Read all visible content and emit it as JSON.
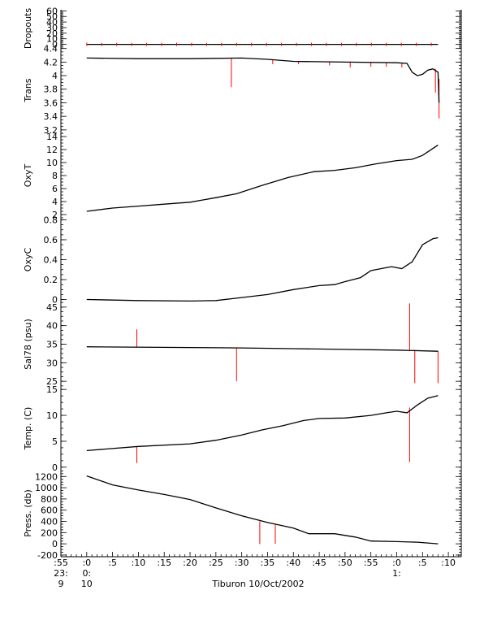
{
  "chart_data": {
    "type": "line",
    "xlabel": "Tiburon 10/Oct/2002",
    "x_ticks": [
      {
        "minute": -5,
        "l1": ":55",
        "l2": "23:",
        "l3": "9"
      },
      {
        "minute": 0,
        "l1": ":0",
        "l2": "0:",
        "l3": "10"
      },
      {
        "minute": 5,
        "l1": ":5",
        "l2": "",
        "l3": ""
      },
      {
        "minute": 10,
        "l1": ":10",
        "l2": "",
        "l3": ""
      },
      {
        "minute": 15,
        "l1": ":15",
        "l2": "",
        "l3": ""
      },
      {
        "minute": 20,
        "l1": ":20",
        "l2": "",
        "l3": ""
      },
      {
        "minute": 25,
        "l1": ":25",
        "l2": "",
        "l3": ""
      },
      {
        "minute": 30,
        "l1": ":30",
        "l2": "",
        "l3": ""
      },
      {
        "minute": 35,
        "l1": ":35",
        "l2": "",
        "l3": ""
      },
      {
        "minute": 40,
        "l1": ":40",
        "l2": "",
        "l3": ""
      },
      {
        "minute": 45,
        "l1": ":45",
        "l2": "",
        "l3": ""
      },
      {
        "minute": 50,
        "l1": ":50",
        "l2": "",
        "l3": ""
      },
      {
        "minute": 55,
        "l1": ":55",
        "l2": "",
        "l3": ""
      },
      {
        "minute": 60,
        "l1": ":0",
        "l2": "1:",
        "l3": ""
      },
      {
        "minute": 65,
        "l1": ":5",
        "l2": "",
        "l3": ""
      },
      {
        "minute": 70,
        "l1": ":10",
        "l2": "",
        "l3": ""
      }
    ],
    "xlim": [
      -5,
      72.5
    ],
    "line_color": "#000000",
    "raw_color": "#ff0000",
    "panels": [
      {
        "ylabel": "Dropouts",
        "ylim": [
          -5,
          62
        ],
        "yticks": [
          0,
          10,
          20,
          30,
          40,
          50,
          60
        ],
        "points": [
          [
            0,
            0
          ],
          [
            68,
            0
          ]
        ],
        "spikes": []
      },
      {
        "ylabel": "Trans",
        "ylim": [
          3.15,
          4.42
        ],
        "yticks": [
          3.2,
          3.4,
          3.6,
          3.8,
          4.0,
          4.2,
          4.4
        ],
        "points": [
          [
            0,
            4.26
          ],
          [
            10,
            4.25
          ],
          [
            20,
            4.25
          ],
          [
            30,
            4.26
          ],
          [
            35,
            4.24
          ],
          [
            40,
            4.21
          ],
          [
            50,
            4.2
          ],
          [
            60,
            4.19
          ],
          [
            62,
            4.18
          ],
          [
            63,
            4.05
          ],
          [
            64,
            4.0
          ],
          [
            65,
            4.02
          ],
          [
            66,
            4.08
          ],
          [
            67,
            4.1
          ],
          [
            68,
            4.05
          ],
          [
            68.2,
            3.6
          ]
        ],
        "spikes": [
          [
            28,
            4.26,
            3.83
          ],
          [
            36,
            4.24,
            4.17
          ],
          [
            41,
            4.21,
            4.17
          ],
          [
            47,
            4.2,
            4.15
          ],
          [
            51,
            4.2,
            4.12
          ],
          [
            55,
            4.2,
            4.13
          ],
          [
            58,
            4.19,
            4.13
          ],
          [
            61,
            4.19,
            4.12
          ],
          [
            67.5,
            4.1,
            3.75
          ],
          [
            68.2,
            3.95,
            3.37
          ]
        ]
      },
      {
        "ylabel": "OxyT",
        "ylim": [
          1.5,
          14.5
        ],
        "yticks": [
          2,
          4,
          6,
          8,
          10,
          12,
          14
        ],
        "points": [
          [
            0,
            2.5
          ],
          [
            5,
            3.0
          ],
          [
            10,
            3.3
          ],
          [
            15,
            3.6
          ],
          [
            20,
            3.9
          ],
          [
            25,
            4.6
          ],
          [
            29,
            5.2
          ],
          [
            34,
            6.5
          ],
          [
            39,
            7.7
          ],
          [
            44,
            8.6
          ],
          [
            48,
            8.8
          ],
          [
            52,
            9.2
          ],
          [
            56,
            9.8
          ],
          [
            60,
            10.3
          ],
          [
            63,
            10.5
          ],
          [
            65,
            11.1
          ],
          [
            68,
            12.7
          ]
        ],
        "spikes": []
      },
      {
        "ylabel": "OxyC",
        "ylim": [
          -0.02,
          0.82
        ],
        "yticks": [
          0.0,
          0.2,
          0.4,
          0.6,
          0.8
        ],
        "points": [
          [
            0,
            0.0
          ],
          [
            10,
            -0.01
          ],
          [
            20,
            -0.015
          ],
          [
            25,
            -0.01
          ],
          [
            30,
            0.02
          ],
          [
            35,
            0.05
          ],
          [
            40,
            0.1
          ],
          [
            45,
            0.14
          ],
          [
            48,
            0.15
          ],
          [
            50,
            0.18
          ],
          [
            53,
            0.22
          ],
          [
            55,
            0.29
          ],
          [
            57,
            0.31
          ],
          [
            59,
            0.33
          ],
          [
            61,
            0.31
          ],
          [
            63,
            0.38
          ],
          [
            65,
            0.55
          ],
          [
            67,
            0.61
          ],
          [
            68,
            0.62
          ]
        ],
        "spikes": []
      },
      {
        "ylabel": "Sal78 (psu)",
        "ylim": [
          23.5,
          46.5
        ],
        "yticks": [
          25,
          30,
          35,
          40,
          45
        ],
        "points": [
          [
            0,
            34.3
          ],
          [
            20,
            34.1
          ],
          [
            30,
            34.0
          ],
          [
            40,
            33.8
          ],
          [
            50,
            33.6
          ],
          [
            60,
            33.4
          ],
          [
            68,
            33.1
          ]
        ],
        "spikes": [
          [
            9.7,
            34.2,
            39.0
          ],
          [
            29,
            34.0,
            25.0
          ],
          [
            62.5,
            33.3,
            46.0
          ],
          [
            63.5,
            33.3,
            24.5
          ],
          [
            68,
            33.1,
            24.5
          ]
        ]
      },
      {
        "ylabel": "Temp. (C)",
        "ylim": [
          -0.5,
          15.5
        ],
        "yticks": [
          0,
          5,
          10,
          15
        ],
        "points": [
          [
            0,
            3.2
          ],
          [
            10,
            4.0
          ],
          [
            20,
            4.5
          ],
          [
            25,
            5.2
          ],
          [
            30,
            6.2
          ],
          [
            34,
            7.2
          ],
          [
            38,
            8.0
          ],
          [
            42,
            9.0
          ],
          [
            45,
            9.4
          ],
          [
            50,
            9.5
          ],
          [
            55,
            10.0
          ],
          [
            58,
            10.5
          ],
          [
            60,
            10.8
          ],
          [
            62,
            10.5
          ],
          [
            64,
            12.0
          ],
          [
            66,
            13.3
          ],
          [
            68,
            13.8
          ]
        ],
        "spikes": [
          [
            9.7,
            3.9,
            0.8
          ],
          [
            62.5,
            11.5,
            1.0
          ]
        ]
      },
      {
        "ylabel": "Press. (db)",
        "ylim": [
          -230,
          1320
        ],
        "yticks": [
          -200,
          0,
          200,
          400,
          600,
          800,
          1000,
          1200
        ],
        "points": [
          [
            0,
            1210
          ],
          [
            5,
            1050
          ],
          [
            10,
            960
          ],
          [
            15,
            880
          ],
          [
            20,
            790
          ],
          [
            25,
            640
          ],
          [
            30,
            500
          ],
          [
            35,
            380
          ],
          [
            40,
            280
          ],
          [
            43,
            180
          ],
          [
            48,
            180
          ],
          [
            52,
            120
          ],
          [
            55,
            50
          ],
          [
            60,
            40
          ],
          [
            64,
            30
          ],
          [
            68,
            0
          ]
        ],
        "spikes": [
          [
            33.5,
            400,
            -5
          ],
          [
            36.5,
            340,
            0
          ]
        ]
      }
    ]
  }
}
